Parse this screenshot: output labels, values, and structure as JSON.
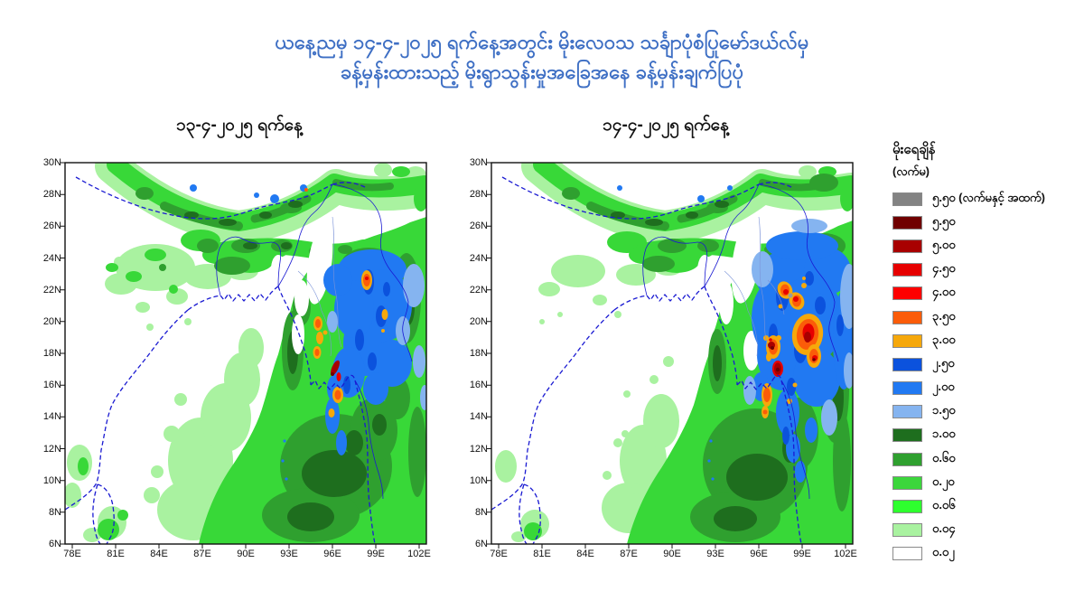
{
  "title": {
    "line1": "ယနေ့ညမှ ၁၄-၄-၂၀၂၅ ရက်နေ့အတွင်း မိုးလေဝသ သင်္ချာပုံစံပြုမော်ဒယ်လ်မှ",
    "line2": "ခန့်မှန်းထားသည့် မိုးရွာသွန်းမှုအခြေအနေ ခန့်မှန်းချက်ပြပုံ",
    "color": "#3e6fc4"
  },
  "panels": [
    {
      "title": "၁၃-၄-၂၀၂၅ ရက်နေ့",
      "x_ticks": [
        "78E",
        "81E",
        "84E",
        "87E",
        "90E",
        "93E",
        "96E",
        "99E",
        "102E"
      ],
      "y_ticks": [
        "30N",
        "28N",
        "26N",
        "24N",
        "22N",
        "20N",
        "18N",
        "16N",
        "14N",
        "12N",
        "10N",
        "8N",
        "6N"
      ]
    },
    {
      "title": "၁၄-၄-၂၀၂၅ ရက်နေ့",
      "x_ticks": [
        "78E",
        "81E",
        "84E",
        "87E",
        "90E",
        "93E",
        "96E",
        "99E",
        "102E"
      ],
      "y_ticks": [
        "30N",
        "28N",
        "26N",
        "24N",
        "22N",
        "20N",
        "18N",
        "16N",
        "14N",
        "12N",
        "10N",
        "8N",
        "6N"
      ]
    }
  ],
  "legend": {
    "title": "မိုးရေချိန်",
    "unit": "(လက်မ)",
    "entries": [
      {
        "color": "#838383",
        "label": "၅.၅၀ (လက်မနှင့် အထက်)",
        "value": "5.50+"
      },
      {
        "color": "#700000",
        "label": "၅.၅၀",
        "value": "5.50"
      },
      {
        "color": "#a80000",
        "label": "၅.၀၀",
        "value": "5.00"
      },
      {
        "color": "#e60000",
        "label": "၄.၅၀",
        "value": "4.50"
      },
      {
        "color": "#fe0000",
        "label": "၄.၀၀",
        "value": "4.00"
      },
      {
        "color": "#fb5c09",
        "label": "၃.၅၀",
        "value": "3.50"
      },
      {
        "color": "#f6a80b",
        "label": "၃.၀၀",
        "value": "3.00"
      },
      {
        "color": "#0b52dd",
        "label": "၂.၅၀",
        "value": "2.50"
      },
      {
        "color": "#2179f2",
        "label": "၂.၀၀",
        "value": "2.00"
      },
      {
        "color": "#85b4f0",
        "label": "၁.၅၀",
        "value": "1.50"
      },
      {
        "color": "#1e6e1e",
        "label": "၁.၀၀",
        "value": "1.00"
      },
      {
        "color": "#2fa02f",
        "label": "၀.၆၀",
        "value": "0.60"
      },
      {
        "color": "#3cd63c",
        "label": "၀.၂၀",
        "value": "0.20"
      },
      {
        "color": "#2eff2e",
        "label": "၀.၀၆",
        "value": "0.06"
      },
      {
        "color": "#a9f2a0",
        "label": "၀.၀၄",
        "value": "0.04"
      },
      {
        "color": "#ffffff",
        "label": "၀.၀၂",
        "value": "0.02"
      }
    ]
  },
  "chart_data": {
    "type": "heatmap",
    "subtype": "geographic-precipitation-shaded-contours",
    "panels": [
      "13-4-2025",
      "14-4-2025"
    ],
    "lon_ticks_deg_e": [
      78,
      81,
      84,
      87,
      90,
      93,
      96,
      99,
      102
    ],
    "lat_ticks_deg_n": [
      30,
      28,
      26,
      24,
      22,
      20,
      18,
      16,
      14,
      12,
      10,
      8,
      6
    ],
    "scale_inches": [
      5.5,
      5.0,
      4.5,
      4.0,
      3.5,
      3.0,
      2.5,
      2.0,
      1.5,
      1.0,
      0.6,
      0.2,
      0.06,
      0.04,
      0.02
    ],
    "legend_position": "right"
  }
}
